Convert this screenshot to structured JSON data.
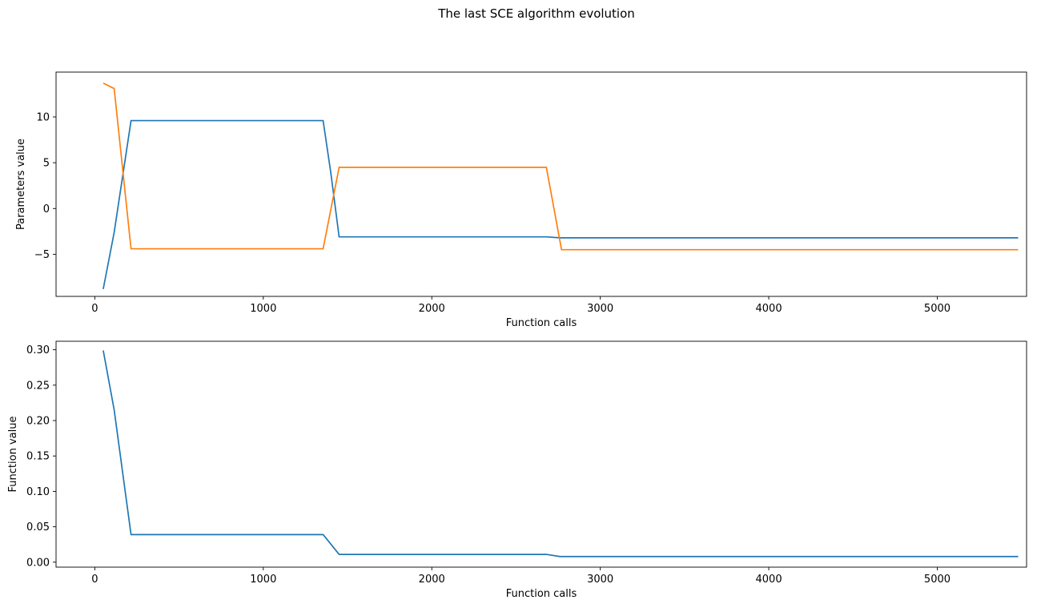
{
  "figure": {
    "suptitle": "The last SCE algorithm evolution"
  },
  "colors": {
    "series1": "#1f77b4",
    "series2": "#ff7f0e"
  },
  "chart_data": [
    {
      "type": "line",
      "xlabel": "Function calls",
      "ylabel": "Parameters value",
      "xlim": [
        -230,
        5530
      ],
      "ylim": [
        -9.6,
        14.9
      ],
      "xticks": [
        0,
        1000,
        2000,
        3000,
        4000,
        5000
      ],
      "xtick_labels": [
        "0",
        "1000",
        "2000",
        "3000",
        "4000",
        "5000"
      ],
      "yticks": [
        -5,
        0,
        5,
        10
      ],
      "ytick_labels": [
        "−5",
        "0",
        "5",
        "10"
      ],
      "grid": false,
      "series": [
        {
          "color": "#1f77b4",
          "x": [
            50,
            115,
            215,
            1355,
            1400,
            1450,
            2680,
            2760,
            5480
          ],
          "y": [
            -8.8,
            -2.6,
            9.6,
            9.6,
            4.0,
            -3.1,
            -3.1,
            -3.2,
            -3.2
          ]
        },
        {
          "color": "#ff7f0e",
          "x": [
            50,
            115,
            215,
            1355,
            1450,
            2680,
            2770,
            5480
          ],
          "y": [
            13.7,
            13.1,
            -4.4,
            -4.4,
            4.5,
            4.5,
            -4.5,
            -4.5
          ]
        }
      ]
    },
    {
      "type": "line",
      "xlabel": "Function calls",
      "ylabel": "Function value",
      "xlim": [
        -230,
        5530
      ],
      "ylim": [
        -0.007,
        0.312
      ],
      "xticks": [
        0,
        1000,
        2000,
        3000,
        4000,
        5000
      ],
      "xtick_labels": [
        "0",
        "1000",
        "2000",
        "3000",
        "4000",
        "5000"
      ],
      "yticks": [
        0.0,
        0.05,
        0.1,
        0.15,
        0.2,
        0.25,
        0.3
      ],
      "ytick_labels": [
        "0.00",
        "0.05",
        "0.10",
        "0.15",
        "0.20",
        "0.25",
        "0.30"
      ],
      "grid": false,
      "series": [
        {
          "color": "#1f77b4",
          "x": [
            50,
            115,
            215,
            1355,
            1450,
            2680,
            2760,
            5480
          ],
          "y": [
            0.299,
            0.215,
            0.039,
            0.039,
            0.011,
            0.011,
            0.008,
            0.008
          ]
        }
      ]
    }
  ]
}
